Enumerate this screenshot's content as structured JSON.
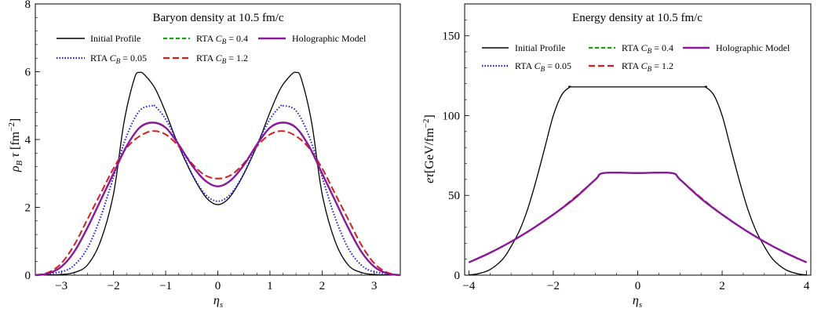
{
  "chart_data": [
    {
      "type": "line",
      "title": "Baryon density at 10.5 fm/c",
      "xlabel": "η_s",
      "ylabel": "ρ_B τ [fm^-2]",
      "xlim": [
        -3.5,
        3.5
      ],
      "ylim": [
        0,
        8
      ],
      "xticks": [
        -3,
        -2,
        -1,
        0,
        1,
        2,
        3
      ],
      "xtick_labels": [
        "−3",
        "−2",
        "−1",
        "0",
        "1",
        "2",
        "3"
      ],
      "yticks": [
        0,
        2,
        4,
        6,
        8
      ],
      "ytick_labels": [
        "0",
        "2",
        "4",
        "6",
        "8"
      ],
      "grid": false,
      "legend_position": "top",
      "series": [
        {
          "name": "Initial Profile",
          "style": "solid",
          "color": "#000000",
          "x": [
            -3.5,
            -3.0,
            -2.75,
            -2.5,
            -2.25,
            -2.0,
            -1.8,
            -1.6,
            -1.5,
            -1.4,
            -1.2,
            -1.0,
            -0.8,
            -0.6,
            -0.4,
            -0.2,
            0,
            0.2,
            0.4,
            0.6,
            0.8,
            1.0,
            1.2,
            1.4,
            1.5,
            1.6,
            1.8,
            2.0,
            2.25,
            2.5,
            2.75,
            3.0,
            3.5
          ],
          "y": [
            0,
            0.02,
            0.08,
            0.3,
            1.0,
            2.4,
            4.5,
            5.8,
            5.98,
            5.9,
            5.5,
            4.8,
            4.0,
            3.3,
            2.7,
            2.25,
            2.08,
            2.25,
            2.7,
            3.3,
            4.0,
            4.8,
            5.5,
            5.9,
            5.98,
            5.8,
            4.5,
            2.4,
            1.0,
            0.3,
            0.08,
            0.02,
            0
          ]
        },
        {
          "name": "RTA C_B = 0.05",
          "style": "dotted",
          "color": "#1a1adb",
          "x": [
            -3.5,
            -3.0,
            -2.75,
            -2.5,
            -2.25,
            -2.0,
            -1.75,
            -1.5,
            -1.25,
            -1.2,
            -1.0,
            -0.75,
            -0.5,
            -0.25,
            0,
            0.25,
            0.5,
            0.75,
            1.0,
            1.2,
            1.25,
            1.5,
            1.75,
            2.0,
            2.25,
            2.5,
            2.75,
            3.0,
            3.5
          ],
          "y": [
            0,
            0.1,
            0.3,
            0.8,
            1.7,
            2.9,
            4.1,
            4.85,
            5.0,
            4.98,
            4.6,
            3.85,
            3.0,
            2.4,
            2.18,
            2.4,
            3.0,
            3.85,
            4.6,
            4.98,
            5.0,
            4.85,
            4.1,
            2.9,
            1.7,
            0.8,
            0.3,
            0.1,
            0
          ]
        },
        {
          "name": "RTA C_B = 0.4",
          "style": "dashed",
          "color": "#1a9f1a",
          "x": [
            -3.5,
            -3.25,
            -3.0,
            -2.75,
            -2.5,
            -2.25,
            -2.0,
            -1.75,
            -1.5,
            -1.25,
            -1.0,
            -0.75,
            -0.5,
            -0.25,
            0,
            0.25,
            0.5,
            0.75,
            1.0,
            1.25,
            1.5,
            1.75,
            2.0,
            2.25,
            2.5,
            2.75,
            3.0,
            3.25,
            3.5
          ],
          "y": [
            0,
            0.05,
            0.25,
            0.7,
            1.4,
            2.2,
            3.0,
            3.8,
            4.35,
            4.5,
            4.35,
            3.85,
            3.25,
            2.8,
            2.62,
            2.8,
            3.25,
            3.85,
            4.35,
            4.5,
            4.35,
            3.8,
            3.0,
            2.2,
            1.4,
            0.7,
            0.25,
            0.05,
            0
          ]
        },
        {
          "name": "RTA C_B = 1.2",
          "style": "longdash",
          "color": "#d41f1f",
          "x": [
            -3.5,
            -3.25,
            -3.0,
            -2.75,
            -2.5,
            -2.25,
            -2.0,
            -1.75,
            -1.5,
            -1.25,
            -1.0,
            -0.75,
            -0.5,
            -0.25,
            0,
            0.25,
            0.5,
            0.75,
            1.0,
            1.25,
            1.5,
            1.75,
            2.0,
            2.25,
            2.5,
            2.75,
            3.0,
            3.25,
            3.5
          ],
          "y": [
            0,
            0.08,
            0.35,
            0.9,
            1.65,
            2.4,
            3.15,
            3.75,
            4.1,
            4.25,
            4.15,
            3.8,
            3.3,
            2.95,
            2.85,
            2.95,
            3.3,
            3.8,
            4.15,
            4.25,
            4.1,
            3.75,
            3.15,
            2.4,
            1.65,
            0.9,
            0.35,
            0.08,
            0
          ]
        },
        {
          "name": "Holographic Model",
          "style": "solid-thick",
          "color": "#8a1a9b",
          "x": [
            -3.5,
            -3.25,
            -3.0,
            -2.75,
            -2.5,
            -2.25,
            -2.0,
            -1.75,
            -1.5,
            -1.25,
            -1.0,
            -0.75,
            -0.5,
            -0.25,
            0,
            0.25,
            0.5,
            0.75,
            1.0,
            1.25,
            1.5,
            1.75,
            2.0,
            2.25,
            2.5,
            2.75,
            3.0,
            3.25,
            3.5
          ],
          "y": [
            0,
            0.05,
            0.25,
            0.7,
            1.4,
            2.2,
            3.0,
            3.8,
            4.35,
            4.5,
            4.35,
            3.85,
            3.25,
            2.8,
            2.62,
            2.8,
            3.25,
            3.85,
            4.35,
            4.5,
            4.35,
            3.8,
            3.0,
            2.2,
            1.4,
            0.7,
            0.25,
            0.05,
            0
          ]
        }
      ]
    },
    {
      "type": "line",
      "title": "Energy density at 10.5 fm/c",
      "xlabel": "η_s",
      "ylabel": "eτ[GeV/fm^-2]",
      "xlim": [
        -4.1,
        4.1
      ],
      "ylim": [
        0,
        170
      ],
      "xticks": [
        -4,
        -2,
        0,
        2,
        4
      ],
      "xtick_labels": [
        "−4",
        "−2",
        "0",
        "2",
        "4"
      ],
      "yticks": [
        0,
        50,
        100,
        150
      ],
      "ytick_labels": [
        "0",
        "50",
        "100",
        "150"
      ],
      "grid": false,
      "legend_position": "top",
      "series": [
        {
          "name": "Initial Profile",
          "style": "solid",
          "color": "#000000",
          "x": [
            -4.0,
            -3.8,
            -3.5,
            -3.2,
            -3.0,
            -2.8,
            -2.6,
            -2.4,
            -2.2,
            -2.0,
            -1.8,
            -1.6,
            -1.5,
            0,
            1.5,
            1.6,
            1.8,
            2.0,
            2.2,
            2.4,
            2.6,
            2.8,
            3.0,
            3.2,
            3.5,
            3.8,
            4.0
          ],
          "y": [
            0.2,
            0.8,
            3.5,
            10,
            18,
            28,
            42,
            60,
            80,
            100,
            113,
            118,
            118,
            118,
            118,
            118,
            113,
            100,
            80,
            60,
            42,
            28,
            18,
            10,
            3.5,
            0.8,
            0.2
          ]
        },
        {
          "name": "RTA C_B = 0.05",
          "style": "dotted",
          "color": "#1a1adb",
          "x": [
            -4.0,
            -3.5,
            -3.0,
            -2.5,
            -2.0,
            -1.5,
            -1.0,
            -0.8,
            0,
            0.8,
            1.0,
            1.5,
            2.0,
            2.5,
            3.0,
            3.5,
            4.0
          ],
          "y": [
            8,
            14,
            21,
            29,
            38,
            48,
            60,
            64,
            64,
            64,
            60,
            48,
            38,
            29,
            21,
            14,
            8
          ]
        },
        {
          "name": "RTA C_B = 0.4",
          "style": "dashed",
          "color": "#1a9f1a",
          "x": [
            -4.0,
            -3.5,
            -3.0,
            -2.5,
            -2.0,
            -1.5,
            -1.0,
            -0.8,
            0,
            0.8,
            1.0,
            1.5,
            2.0,
            2.5,
            3.0,
            3.5,
            4.0
          ],
          "y": [
            8,
            14,
            21,
            29,
            38,
            48,
            60,
            64,
            64,
            64,
            60,
            48,
            38,
            29,
            21,
            14,
            8
          ]
        },
        {
          "name": "RTA C_B = 1.2",
          "style": "longdash",
          "color": "#d41f1f",
          "x": [
            -4.0,
            -3.5,
            -3.0,
            -2.5,
            -2.0,
            -1.5,
            -1.0,
            -0.8,
            0,
            0.8,
            1.0,
            1.5,
            2.0,
            2.5,
            3.0,
            3.5,
            4.0
          ],
          "y": [
            8,
            14,
            21,
            29,
            38,
            48.5,
            60,
            64,
            64,
            64,
            60,
            48.5,
            38,
            29,
            21,
            14,
            8
          ]
        },
        {
          "name": "Holographic Model",
          "style": "solid-thick",
          "color": "#8a1a9b",
          "x": [
            -4.0,
            -3.5,
            -3.0,
            -2.5,
            -2.0,
            -1.5,
            -1.0,
            -0.8,
            0,
            0.8,
            1.0,
            1.5,
            2.0,
            2.5,
            3.0,
            3.5,
            4.0
          ],
          "y": [
            8,
            14,
            21,
            29,
            38,
            48,
            60,
            64,
            64,
            64,
            60,
            48,
            38,
            29,
            21,
            14,
            8
          ]
        }
      ]
    }
  ]
}
